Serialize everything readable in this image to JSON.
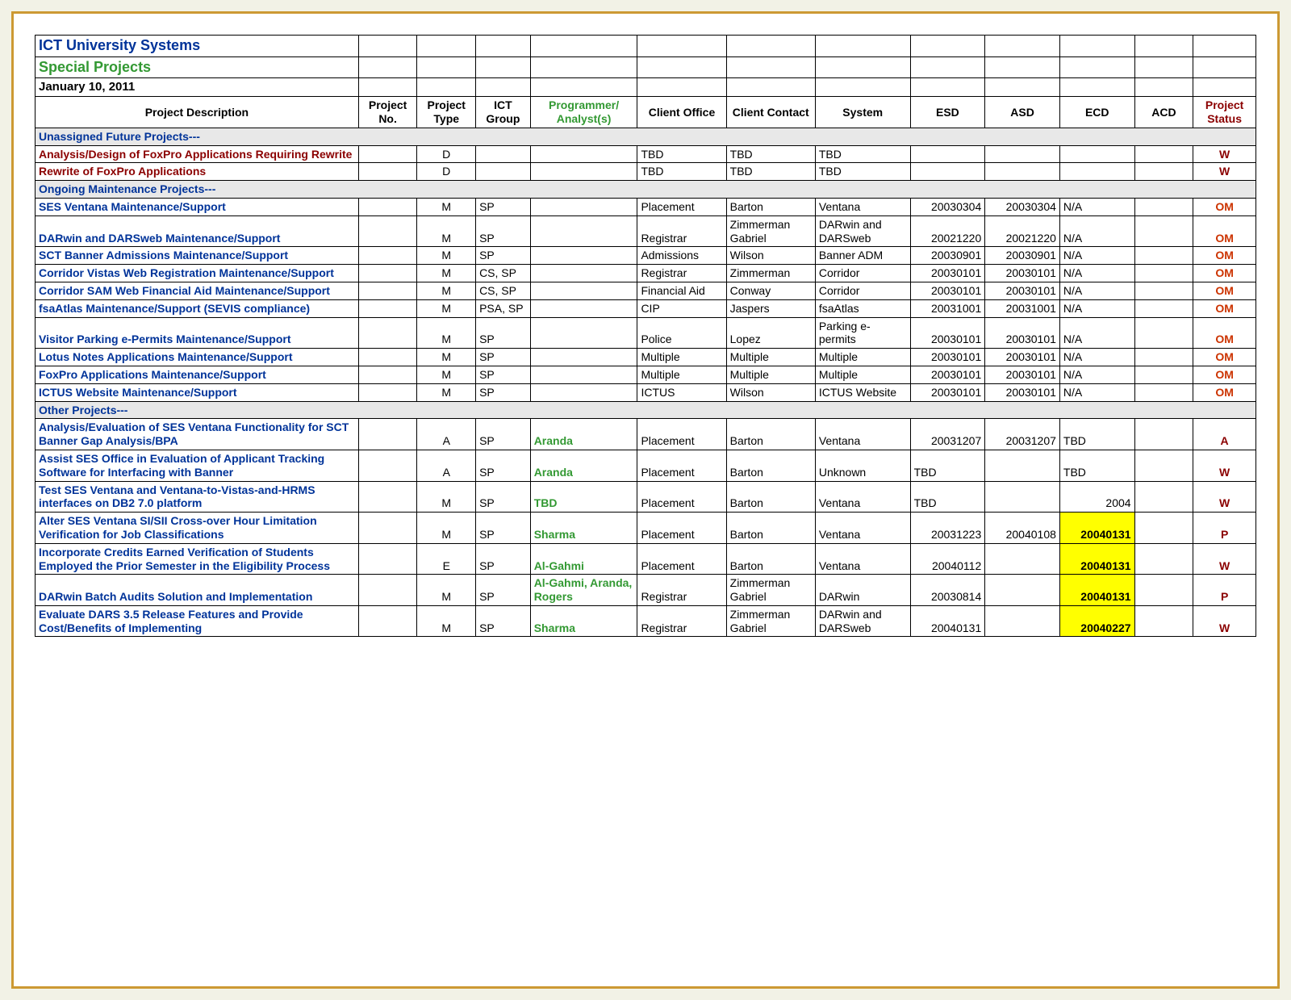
{
  "header": {
    "org": "ICT University Systems",
    "special": "Special Projects",
    "date": "January 10, 2011"
  },
  "columns": {
    "desc": "Project Description",
    "pno": "Project No.",
    "ptype": "Project Type",
    "ict": "ICT Group",
    "prog": "Programmer/ Analyst(s)",
    "office": "Client Office",
    "contact": "Client Contact",
    "system": "System",
    "esd": "ESD",
    "asd": "ASD",
    "ecd": "ECD",
    "acd": "ACD",
    "status": "Project Status"
  },
  "sections": {
    "unassigned": "Unassigned Future Projects---",
    "ongoing": "Ongoing Maintenance Projects---",
    "other": "Other Projects---"
  },
  "rows": {
    "r1": {
      "desc": "Analysis/Design of FoxPro Applications Requiring Rewrite",
      "ptype": "D",
      "office": "TBD",
      "contact": "TBD",
      "system": "TBD",
      "status": "W"
    },
    "r2": {
      "desc": "Rewrite of FoxPro Applications",
      "ptype": "D",
      "office": "TBD",
      "contact": "TBD",
      "system": "TBD",
      "status": "W"
    },
    "r3": {
      "desc": "SES Ventana Maintenance/Support",
      "ptype": "M",
      "ict": "SP",
      "office": "Placement",
      "contact": "Barton",
      "system": "Ventana",
      "esd": "20030304",
      "asd": "20030304",
      "ecd": "N/A",
      "status": "OM"
    },
    "r4": {
      "desc": "DARwin and DARSweb Maintenance/Support",
      "ptype": "M",
      "ict": "SP",
      "office": "Registrar",
      "contact": "Zimmerman Gabriel",
      "system": "DARwin and DARSweb",
      "esd": "20021220",
      "asd": "20021220",
      "ecd": "N/A",
      "status": "OM"
    },
    "r5": {
      "desc": "SCT Banner Admissions Maintenance/Support",
      "ptype": "M",
      "ict": "SP",
      "office": "Admissions",
      "contact": "Wilson",
      "system": "Banner ADM",
      "esd": "20030901",
      "asd": "20030901",
      "ecd": "N/A",
      "status": "OM"
    },
    "r6": {
      "desc": "Corridor Vistas Web Registration Maintenance/Support",
      "ptype": "M",
      "ict": "CS, SP",
      "office": "Registrar",
      "contact": "Zimmerman",
      "system": "Corridor",
      "esd": "20030101",
      "asd": "20030101",
      "ecd": "N/A",
      "status": "OM"
    },
    "r7": {
      "desc": "Corridor SAM Web Financial Aid Maintenance/Support",
      "ptype": "M",
      "ict": "CS, SP",
      "office": "Financial Aid",
      "contact": "Conway",
      "system": "Corridor",
      "esd": "20030101",
      "asd": "20030101",
      "ecd": "N/A",
      "status": "OM"
    },
    "r8": {
      "desc": "fsaAtlas Maintenance/Support (SEVIS compliance)",
      "ptype": "M",
      "ict": "PSA, SP",
      "office": "CIP",
      "contact": "Jaspers",
      "system": "fsaAtlas",
      "esd": "20031001",
      "asd": "20031001",
      "ecd": "N/A",
      "status": "OM"
    },
    "r9": {
      "desc": "Visitor Parking e-Permits Maintenance/Support",
      "ptype": "M",
      "ict": "SP",
      "office": "Police",
      "contact": "Lopez",
      "system": "Parking e-permits",
      "esd": "20030101",
      "asd": "20030101",
      "ecd": "N/A",
      "status": "OM"
    },
    "r10": {
      "desc": "Lotus Notes Applications Maintenance/Support",
      "ptype": "M",
      "ict": "SP",
      "office": "Multiple",
      "contact": "Multiple",
      "system": "Multiple",
      "esd": "20030101",
      "asd": "20030101",
      "ecd": "N/A",
      "status": "OM"
    },
    "r11": {
      "desc": "FoxPro Applications Maintenance/Support",
      "ptype": "M",
      "ict": "SP",
      "office": "Multiple",
      "contact": "Multiple",
      "system": "Multiple",
      "esd": "20030101",
      "asd": "20030101",
      "ecd": "N/A",
      "status": "OM"
    },
    "r12": {
      "desc": "ICTUS Website Maintenance/Support",
      "ptype": "M",
      "ict": "SP",
      "office": "ICTUS",
      "contact": "Wilson",
      "system": "ICTUS Website",
      "esd": "20030101",
      "asd": "20030101",
      "ecd": "N/A",
      "status": "OM"
    },
    "r13": {
      "desc": "Analysis/Evaluation of SES Ventana Functionality for SCT Banner Gap Analysis/BPA",
      "ptype": "A",
      "ict": "SP",
      "prog": "Aranda",
      "office": "Placement",
      "contact": "Barton",
      "system": "Ventana",
      "esd": "20031207",
      "asd": "20031207",
      "ecd": "TBD",
      "status": "A"
    },
    "r14": {
      "desc": "Assist SES Office in Evaluation of Applicant Tracking Software for Interfacing with Banner",
      "ptype": "A",
      "ict": "SP",
      "prog": "Aranda",
      "office": "Placement",
      "contact": "Barton",
      "system": "Unknown",
      "esd": "TBD",
      "ecd": "TBD",
      "status": "W"
    },
    "r15": {
      "desc": "Test SES Ventana and Ventana-to-Vistas-and-HRMS interfaces on DB2 7.0 platform",
      "ptype": "M",
      "ict": "SP",
      "prog": "TBD",
      "office": "Placement",
      "contact": "Barton",
      "system": "Ventana",
      "esd": "TBD",
      "ecd": "2004",
      "status": "W"
    },
    "r16": {
      "desc": "Alter SES Ventana SI/SII Cross-over Hour Limitation Verification for Job Classifications",
      "ptype": "M",
      "ict": "SP",
      "prog": "Sharma",
      "office": "Placement",
      "contact": "Barton",
      "system": "Ventana",
      "esd": "20031223",
      "asd": "20040108",
      "ecd": "20040131",
      "status": "P"
    },
    "r17": {
      "desc": "Incorporate Credits Earned Verification of Students Employed the Prior Semester in the Eligibility Process",
      "ptype": "E",
      "ict": "SP",
      "prog": "Al-Gahmi",
      "office": "Placement",
      "contact": "Barton",
      "system": "Ventana",
      "esd": "20040112",
      "ecd": "20040131",
      "status": "W"
    },
    "r18": {
      "desc": "DARwin Batch Audits Solution and Implementation",
      "ptype": "M",
      "ict": "SP",
      "prog": "Al-Gahmi, Aranda, Rogers",
      "office": "Registrar",
      "contact": "Zimmerman Gabriel",
      "system": "DARwin",
      "esd": "20030814",
      "ecd": "20040131",
      "status": "P"
    },
    "r19": {
      "desc": "Evaluate DARS 3.5 Release Features and Provide Cost/Benefits of Implementing",
      "ptype": "M",
      "ict": "SP",
      "prog": "Sharma",
      "office": "Registrar",
      "contact": "Zimmerman Gabriel",
      "system": "DARwin and DARSweb",
      "esd": "20040131",
      "ecd": "20040227",
      "status": "W"
    }
  },
  "styling": {
    "highlight_bg": "#ffff00",
    "border_color": "#000000",
    "frame_border": "#cc9933",
    "page_bg": "#f2f2e6",
    "section_bg": "#e8e8e8",
    "desc_color": "#003399",
    "desc_maroon": "#8b0000",
    "prog_color": "#339933",
    "status_color": "#8b0000",
    "status_om_color": "#cc3300"
  }
}
